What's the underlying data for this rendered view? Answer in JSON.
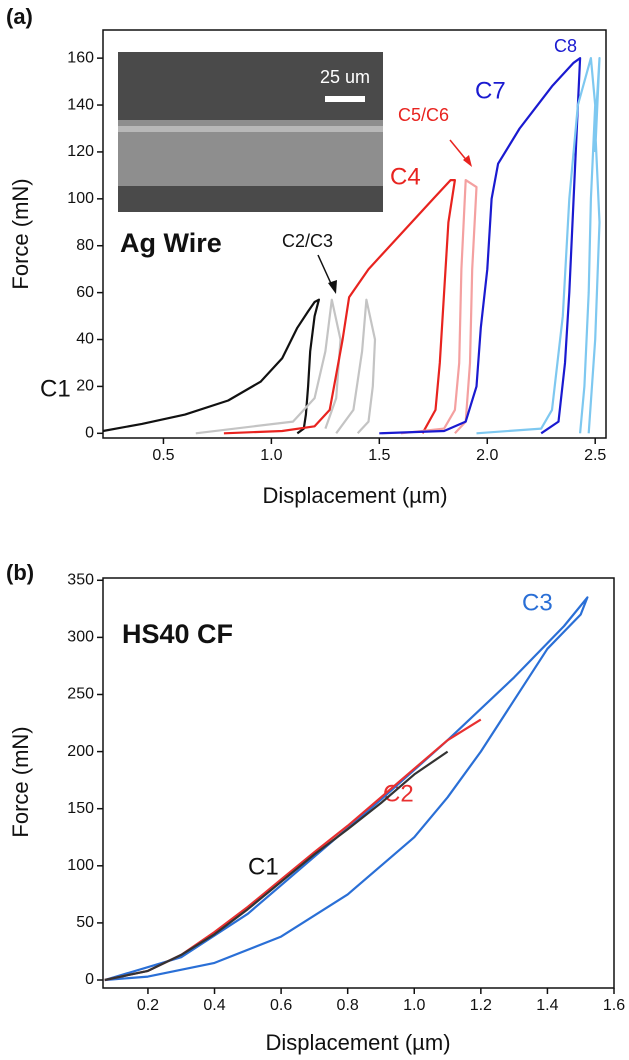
{
  "chart_data": [
    {
      "type": "line",
      "panel": "(a)",
      "annotation": "Ag Wire",
      "scale_bar": "25 um",
      "x_label": "Displacement (µm)",
      "y_label": "Force (mN)",
      "xlim": [
        0.22,
        2.55
      ],
      "ylim": [
        -2,
        172
      ],
      "xticks": [
        0.5,
        {
          "value": 1,
          "label": "1.0"
        },
        1.5,
        {
          "value": 2,
          "label": "2.0"
        },
        2.5
      ],
      "yticks": [
        0,
        20,
        40,
        60,
        80,
        100,
        120,
        140,
        160
      ],
      "series": [
        {
          "name": "C1",
          "color": "#111111",
          "x": [
            0.22,
            0.4,
            0.6,
            0.8,
            0.95,
            1.05,
            1.12,
            1.17,
            1.2,
            1.22,
            1.2,
            1.18,
            1.17,
            1.16,
            1.15,
            1.12
          ],
          "values": [
            1,
            4,
            8,
            14,
            22,
            32,
            45,
            52,
            56,
            57,
            50,
            35,
            20,
            8,
            2,
            0
          ]
        },
        {
          "name": "C2/C3",
          "color": "#c4c4c4",
          "x": [
            0.65,
            1.1,
            1.2,
            1.25,
            1.28,
            1.32,
            1.3,
            1.25,
            null,
            1.3,
            1.38,
            1.42,
            1.44,
            1.48,
            1.47,
            1.45,
            1.4
          ],
          "values": [
            0,
            5,
            15,
            35,
            57,
            40,
            15,
            2,
            null,
            0,
            10,
            35,
            57,
            40,
            20,
            5,
            0
          ]
        },
        {
          "name": "C4",
          "color": "#e8231f",
          "x": [
            0.78,
            1.05,
            1.2,
            1.27,
            1.3,
            1.33,
            1.36,
            1.45,
            1.6,
            1.75,
            1.83,
            1.85,
            1.82,
            1.8,
            1.78,
            1.76,
            1.7
          ],
          "values": [
            0,
            1,
            3,
            10,
            25,
            40,
            58,
            70,
            85,
            100,
            108,
            108,
            90,
            60,
            30,
            10,
            0
          ]
        },
        {
          "name": "C5/C6",
          "color": "#f4a0a0",
          "x": [
            1.6,
            1.8,
            1.85,
            1.87,
            1.88,
            1.9,
            1.95,
            1.93,
            1.92,
            1.9,
            1.85
          ],
          "values": [
            0,
            2,
            10,
            30,
            70,
            108,
            105,
            70,
            30,
            5,
            0
          ]
        },
        {
          "name": "C7",
          "color": "#1a1ad0",
          "x": [
            1.5,
            1.8,
            1.9,
            1.95,
            1.97,
            2.0,
            2.02,
            2.05,
            2.15,
            2.3,
            2.4,
            2.43,
            2.42,
            2.4,
            2.38,
            2.36,
            2.33,
            2.25
          ],
          "values": [
            0,
            1,
            5,
            20,
            45,
            70,
            100,
            115,
            130,
            148,
            158,
            160,
            140,
            100,
            60,
            30,
            5,
            0
          ]
        },
        {
          "name": "C8",
          "color": "#7ec8f0",
          "x": [
            1.95,
            2.25,
            2.3,
            2.35,
            2.38,
            2.42,
            2.48,
            2.5,
            2.48,
            2.47,
            2.45,
            2.43,
            null,
            2.47,
            2.5,
            2.52,
            2.5,
            2.52,
            2.5
          ],
          "values": [
            0,
            2,
            10,
            50,
            100,
            140,
            160,
            140,
            100,
            60,
            20,
            0,
            null,
            0,
            40,
            90,
            130,
            160,
            120
          ]
        }
      ]
    },
    {
      "type": "line",
      "panel": "(b)",
      "annotation": "HS40 CF",
      "x_label": "Displacement (µm)",
      "y_label": "Force (mN)",
      "xlim": [
        0.065,
        1.6
      ],
      "ylim": [
        -7,
        352
      ],
      "xticks": [
        0.2,
        0.4,
        0.6,
        0.8,
        {
          "value": 1,
          "label": "1.0"
        },
        1.2,
        1.4,
        1.6
      ],
      "yticks": [
        0,
        50,
        100,
        150,
        200,
        250,
        300,
        350
      ],
      "series": [
        {
          "name": "C3",
          "color": "#2a6fd6",
          "x": [
            0.07,
            0.3,
            0.5,
            0.7,
            0.9,
            1.1,
            1.3,
            1.45,
            1.52,
            1.5,
            1.4,
            1.3,
            1.2,
            1.1,
            1.0,
            0.8,
            0.6,
            0.4,
            0.2,
            0.07
          ],
          "values": [
            0,
            20,
            58,
            108,
            158,
            210,
            265,
            310,
            335,
            320,
            290,
            245,
            200,
            160,
            125,
            75,
            38,
            15,
            3,
            0
          ]
        },
        {
          "name": "C2",
          "color": "#e83030",
          "x": [
            0.07,
            0.2,
            0.3,
            0.4,
            0.5,
            0.6,
            0.7,
            0.8,
            0.9,
            1.0,
            1.1,
            1.2
          ],
          "values": [
            0,
            8,
            22,
            42,
            64,
            88,
            112,
            135,
            160,
            185,
            210,
            228
          ]
        },
        {
          "name": "C1",
          "color": "#333333",
          "x": [
            0.07,
            0.2,
            0.3,
            0.4,
            0.5,
            0.6,
            0.7,
            0.8,
            0.9,
            1.0,
            1.1
          ],
          "values": [
            0,
            8,
            22,
            40,
            62,
            86,
            110,
            132,
            155,
            180,
            200
          ]
        }
      ]
    }
  ]
}
